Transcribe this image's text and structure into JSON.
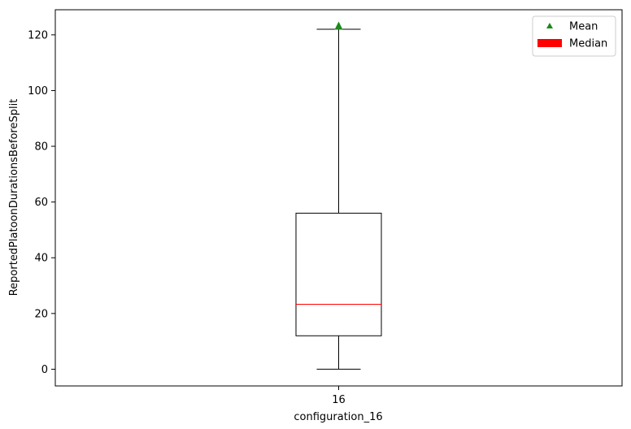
{
  "chart_data": {
    "type": "boxplot",
    "categories": [
      "16"
    ],
    "xlabel": "configuration_16",
    "ylabel": "ReportedPlatoonDurationsBeforeSplit",
    "ylim": [
      -6,
      129
    ],
    "yticks": [
      0,
      20,
      40,
      60,
      80,
      100,
      120
    ],
    "ytick_labels": [
      "0",
      "20",
      "40",
      "60",
      "80",
      "100",
      "120"
    ],
    "grid": false,
    "legend_position": "top-right",
    "series": [
      {
        "category": "16",
        "whisker_low": 0,
        "q1": 12,
        "median": 23.3,
        "q3": 56,
        "whisker_high": 122,
        "mean": 123.3
      }
    ],
    "legend": [
      {
        "label": "Mean",
        "marker": "triangle",
        "color": "#1a8a1a"
      },
      {
        "label": "Median",
        "marker": "patch",
        "color": "#ff0000"
      }
    ],
    "colors": {
      "box": "#000000",
      "median": "#ff0000",
      "mean": "#1a8a1a"
    }
  }
}
